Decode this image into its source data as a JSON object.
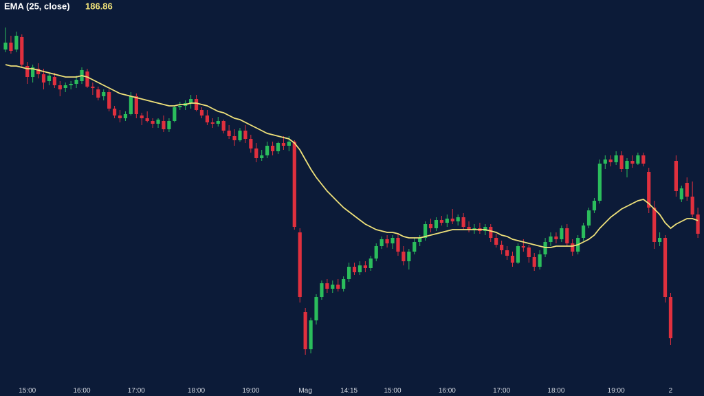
{
  "chart_data": {
    "type": "candlestick",
    "categories": [
      null,
      null,
      null,
      null,
      "15:00",
      null,
      null,
      null,
      null,
      null,
      null,
      null,
      null,
      null,
      "16:00",
      null,
      null,
      null,
      null,
      null,
      null,
      null,
      null,
      null,
      "17:00",
      null,
      null,
      null,
      null,
      null,
      null,
      null,
      null,
      null,
      null,
      "18:00",
      null,
      null,
      null,
      null,
      null,
      null,
      null,
      null,
      null,
      "19:00",
      null,
      null,
      null,
      null,
      null,
      null,
      null,
      null,
      null,
      "Mag",
      null,
      null,
      null,
      null,
      null,
      null,
      null,
      "14:15",
      null,
      null,
      null,
      null,
      null,
      null,
      null,
      "15:00",
      null,
      null,
      null,
      null,
      null,
      null,
      null,
      null,
      null,
      "16:00",
      null,
      null,
      null,
      null,
      null,
      null,
      null,
      null,
      null,
      "17:00",
      null,
      null,
      null,
      null,
      null,
      null,
      null,
      null,
      null,
      "18:00",
      null,
      null,
      null,
      null,
      null,
      null,
      null,
      null,
      null,
      null,
      "19:00",
      null,
      null,
      null,
      null,
      null,
      null,
      null,
      null,
      null,
      "2",
      null,
      null,
      null,
      null,
      null
    ],
    "ohlc": [
      [
        199.3,
        200.9,
        199.1,
        199.8
      ],
      [
        199.8,
        200.3,
        199.0,
        199.2
      ],
      [
        199.3,
        200.6,
        199.1,
        200.3
      ],
      [
        200.2,
        200.4,
        198.0,
        198.2
      ],
      [
        198.1,
        198.4,
        196.8,
        197.3
      ],
      [
        197.3,
        198.2,
        196.9,
        198.0
      ],
      [
        197.9,
        198.3,
        197.2,
        197.5
      ],
      [
        197.5,
        197.9,
        196.4,
        196.9
      ],
      [
        197.0,
        197.6,
        196.7,
        197.4
      ],
      [
        197.3,
        197.6,
        196.5,
        196.7
      ],
      [
        196.7,
        197.0,
        195.9,
        196.4
      ],
      [
        196.5,
        196.9,
        196.2,
        196.7
      ],
      [
        196.7,
        197.0,
        196.4,
        196.8
      ],
      [
        196.8,
        197.4,
        196.5,
        197.1
      ],
      [
        197.0,
        198.0,
        196.8,
        197.8
      ],
      [
        197.7,
        197.9,
        196.5,
        196.6
      ],
      [
        196.6,
        196.9,
        196.0,
        196.5
      ],
      [
        196.4,
        196.6,
        195.6,
        195.8
      ],
      [
        195.9,
        196.4,
        195.6,
        196.2
      ],
      [
        196.2,
        196.4,
        194.8,
        195.0
      ],
      [
        195.0,
        195.2,
        194.3,
        194.5
      ],
      [
        194.5,
        194.9,
        194.0,
        194.3
      ],
      [
        194.3,
        194.8,
        194.1,
        194.6
      ],
      [
        194.6,
        196.2,
        194.5,
        195.9
      ],
      [
        195.9,
        196.1,
        194.3,
        194.6
      ],
      [
        194.5,
        194.7,
        193.8,
        194.3
      ],
      [
        194.3,
        194.8,
        194.0,
        194.1
      ],
      [
        194.1,
        194.3,
        193.6,
        193.9
      ],
      [
        193.9,
        194.3,
        193.6,
        194.2
      ],
      [
        194.1,
        194.5,
        193.3,
        193.5
      ],
      [
        193.5,
        194.3,
        193.3,
        194.1
      ],
      [
        194.1,
        195.2,
        194.0,
        195.1
      ],
      [
        195.1,
        195.5,
        194.9,
        195.2
      ],
      [
        195.2,
        195.6,
        194.9,
        195.4
      ],
      [
        195.4,
        196.0,
        195.0,
        195.7
      ],
      [
        195.7,
        196.0,
        194.8,
        194.9
      ],
      [
        194.9,
        195.1,
        194.3,
        194.5
      ],
      [
        194.5,
        194.9,
        193.8,
        194.0
      ],
      [
        194.0,
        194.3,
        193.6,
        193.9
      ],
      [
        193.9,
        194.4,
        193.7,
        194.1
      ],
      [
        194.1,
        194.2,
        193.2,
        193.4
      ],
      [
        193.4,
        193.8,
        192.8,
        193.0
      ],
      [
        193.0,
        193.5,
        192.3,
        192.7
      ],
      [
        192.7,
        193.6,
        192.6,
        193.4
      ],
      [
        193.4,
        193.8,
        192.5,
        192.8
      ],
      [
        192.8,
        193.1,
        191.8,
        192.1
      ],
      [
        192.1,
        192.5,
        191.1,
        191.4
      ],
      [
        191.4,
        192.0,
        191.2,
        191.6
      ],
      [
        191.6,
        192.6,
        191.4,
        192.3
      ],
      [
        192.3,
        192.6,
        191.6,
        191.9
      ],
      [
        191.9,
        192.6,
        191.7,
        192.5
      ],
      [
        192.5,
        193.0,
        192.0,
        192.3
      ],
      [
        192.3,
        193.0,
        191.9,
        192.6
      ],
      [
        192.6,
        192.7,
        186.2,
        186.4
      ],
      [
        186.0,
        186.3,
        180.9,
        181.3
      ],
      [
        180.2,
        180.5,
        177.1,
        177.5
      ],
      [
        177.5,
        179.8,
        177.2,
        179.6
      ],
      [
        179.6,
        181.5,
        179.3,
        181.3
      ],
      [
        181.3,
        182.5,
        181.1,
        182.3
      ],
      [
        182.3,
        182.6,
        181.6,
        181.9
      ],
      [
        181.9,
        182.5,
        181.6,
        182.2
      ],
      [
        182.2,
        182.6,
        181.7,
        181.9
      ],
      [
        181.9,
        182.8,
        181.7,
        182.6
      ],
      [
        182.6,
        183.8,
        182.4,
        183.5
      ],
      [
        183.5,
        183.8,
        182.9,
        183.1
      ],
      [
        183.1,
        183.9,
        182.9,
        183.6
      ],
      [
        183.6,
        183.9,
        183.1,
        183.4
      ],
      [
        183.4,
        184.3,
        183.2,
        184.1
      ],
      [
        184.1,
        185.2,
        183.9,
        185.0
      ],
      [
        185.0,
        185.7,
        184.8,
        185.5
      ],
      [
        185.5,
        185.8,
        184.9,
        185.2
      ],
      [
        185.2,
        185.8,
        184.8,
        185.6
      ],
      [
        185.6,
        185.9,
        184.3,
        184.6
      ],
      [
        184.6,
        185.0,
        183.6,
        183.9
      ],
      [
        183.9,
        184.8,
        183.3,
        184.6
      ],
      [
        184.6,
        185.6,
        184.4,
        185.3
      ],
      [
        185.3,
        185.8,
        185.0,
        185.6
      ],
      [
        185.6,
        186.8,
        185.4,
        186.6
      ],
      [
        186.6,
        187.0,
        186.0,
        186.3
      ],
      [
        186.3,
        187.1,
        186.1,
        186.9
      ],
      [
        186.9,
        187.2,
        186.5,
        186.7
      ],
      [
        186.7,
        187.3,
        186.4,
        187.0
      ],
      [
        187.0,
        187.7,
        186.6,
        186.8
      ],
      [
        186.8,
        187.3,
        186.5,
        187.1
      ],
      [
        187.1,
        187.4,
        186.2,
        186.4
      ],
      [
        186.4,
        186.8,
        186.0,
        186.2
      ],
      [
        186.2,
        186.6,
        185.9,
        186.3
      ],
      [
        186.3,
        186.7,
        185.9,
        186.1
      ],
      [
        186.1,
        186.6,
        185.8,
        186.4
      ],
      [
        186.4,
        186.6,
        185.3,
        185.6
      ],
      [
        185.6,
        185.9,
        184.9,
        185.1
      ],
      [
        185.1,
        185.4,
        184.4,
        184.7
      ],
      [
        184.7,
        185.0,
        184.0,
        184.3
      ],
      [
        184.3,
        184.6,
        183.5,
        183.8
      ],
      [
        183.8,
        185.2,
        183.7,
        185.0
      ],
      [
        185.0,
        185.5,
        184.6,
        184.9
      ],
      [
        184.9,
        185.1,
        183.8,
        184.2
      ],
      [
        184.2,
        184.5,
        183.2,
        183.5
      ],
      [
        183.5,
        184.7,
        183.3,
        184.4
      ],
      [
        184.4,
        185.6,
        184.2,
        185.3
      ],
      [
        185.3,
        186.0,
        185.0,
        185.7
      ],
      [
        185.7,
        186.0,
        185.2,
        185.5
      ],
      [
        185.5,
        186.5,
        185.3,
        186.3
      ],
      [
        186.3,
        186.6,
        185.0,
        185.2
      ],
      [
        185.2,
        185.5,
        184.3,
        184.6
      ],
      [
        184.6,
        185.8,
        184.4,
        185.6
      ],
      [
        185.6,
        186.7,
        185.4,
        186.5
      ],
      [
        186.5,
        187.8,
        186.3,
        187.6
      ],
      [
        187.6,
        188.5,
        187.4,
        188.3
      ],
      [
        188.3,
        191.3,
        188.1,
        191.0
      ],
      [
        191.0,
        191.6,
        190.6,
        191.3
      ],
      [
        191.3,
        191.6,
        190.8,
        191.1
      ],
      [
        191.1,
        191.9,
        190.9,
        191.6
      ],
      [
        191.6,
        191.9,
        190.4,
        190.6
      ],
      [
        190.6,
        191.4,
        190.0,
        191.2
      ],
      [
        191.2,
        191.6,
        190.7,
        191.0
      ],
      [
        191.0,
        191.8,
        190.9,
        191.6
      ],
      [
        191.6,
        191.8,
        190.8,
        191.0
      ],
      [
        190.4,
        190.7,
        187.4,
        187.8
      ],
      [
        187.8,
        188.3,
        184.8,
        185.3
      ],
      [
        185.3,
        186.0,
        185.0,
        185.6
      ],
      [
        185.6,
        185.8,
        180.9,
        181.3
      ],
      [
        181.3,
        181.6,
        177.8,
        178.3
      ],
      [
        191.2,
        191.6,
        188.6,
        189.0
      ],
      [
        188.4,
        189.4,
        188.2,
        189.2
      ],
      [
        189.6,
        190.0,
        188.3,
        188.6
      ],
      [
        188.6,
        189.7,
        187.1,
        187.3
      ],
      [
        187.3,
        187.8,
        185.6,
        185.9
      ]
    ],
    "up_color": "#2bbd5c",
    "down_color": "#e0303e",
    "ema": {
      "name": "EMA (25, close)",
      "color": "#f0e27a",
      "values": [
        198.2,
        198.1,
        198.1,
        198.0,
        197.9,
        197.9,
        197.8,
        197.7,
        197.6,
        197.5,
        197.4,
        197.3,
        197.3,
        197.3,
        197.4,
        197.3,
        197.1,
        196.9,
        196.7,
        196.5,
        196.3,
        196.1,
        196.0,
        195.9,
        195.8,
        195.7,
        195.6,
        195.5,
        195.4,
        195.3,
        195.2,
        195.2,
        195.3,
        195.3,
        195.4,
        195.4,
        195.3,
        195.2,
        195.0,
        194.8,
        194.7,
        194.5,
        194.3,
        194.2,
        194.0,
        193.8,
        193.6,
        193.4,
        193.2,
        193.1,
        193.0,
        192.9,
        192.8,
        192.5,
        192.0,
        191.3,
        190.6,
        190.0,
        189.5,
        189.0,
        188.6,
        188.2,
        187.8,
        187.5,
        187.2,
        186.9,
        186.6,
        186.4,
        186.2,
        186.1,
        186.0,
        186.0,
        185.9,
        185.7,
        185.6,
        185.6,
        185.6,
        185.7,
        185.8,
        185.9,
        186.0,
        186.1,
        186.2,
        186.2,
        186.2,
        186.2,
        186.2,
        186.2,
        186.2,
        186.1,
        186.0,
        185.8,
        185.7,
        185.5,
        185.4,
        185.3,
        185.2,
        185.1,
        185.0,
        184.9,
        184.9,
        185.0,
        185.0,
        185.0,
        185.0,
        185.1,
        185.3,
        185.5,
        185.8,
        186.3,
        186.7,
        187.1,
        187.4,
        187.7,
        187.9,
        188.1,
        188.3,
        188.4,
        188.1,
        187.7,
        187.3,
        186.7,
        186.3,
        186.6,
        186.8,
        187.0,
        187.0,
        186.86
      ]
    },
    "ylim": [
      175.15,
      202.9
    ]
  }
}
